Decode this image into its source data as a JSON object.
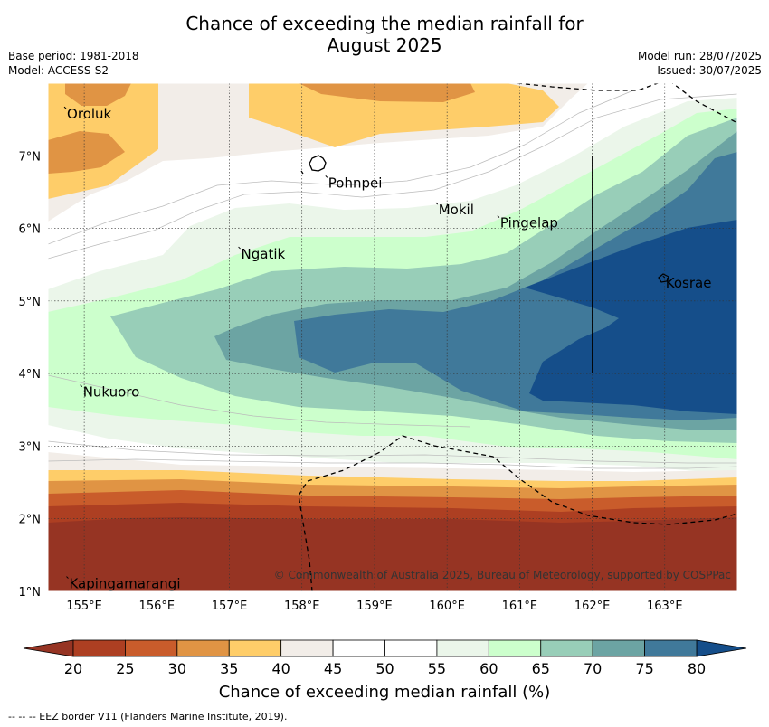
{
  "header": {
    "title_line1": "Chance of exceeding the median rainfall for",
    "title_line2": "August 2025",
    "base_period": "Base period: 1981-2018",
    "model": "Model: ACCESS-S2",
    "model_run": "Model run: 28/07/2025",
    "issued": "Issued: 30/07/2025"
  },
  "map": {
    "lon_labels": [
      "155°E",
      "156°E",
      "157°E",
      "158°E",
      "159°E",
      "160°E",
      "161°E",
      "162°E",
      "163°E"
    ],
    "lat_labels": [
      "7°N",
      "6°N",
      "5°N",
      "4°N",
      "3°N",
      "2°N",
      "1°N"
    ],
    "places": [
      {
        "name": "Oroluk",
        "lon": 154.75,
        "lat": 7.65
      },
      {
        "name": "Pohnpei",
        "lon": 158.35,
        "lat": 6.7
      },
      {
        "name": "Mokil",
        "lon": 159.87,
        "lat": 6.33
      },
      {
        "name": "Pingelap",
        "lon": 160.72,
        "lat": 6.15
      },
      {
        "name": "Ngatik",
        "lon": 157.15,
        "lat": 5.72
      },
      {
        "name": "Kosrae",
        "lon": 163.0,
        "lat": 5.32
      },
      {
        "name": "Nukuoro",
        "lon": 154.97,
        "lat": 3.82
      },
      {
        "name": "Kapingamarangi",
        "lon": 154.78,
        "lat": 1.18
      }
    ],
    "copyright": "© Commonwealth of Australia 2025, Bureau of Meteorology, supported by COSPPac",
    "border_color": "#000000"
  },
  "colorbar": {
    "ticks": [
      "20",
      "25",
      "30",
      "35",
      "40",
      "45",
      "50",
      "55",
      "60",
      "65",
      "70",
      "75",
      "80"
    ],
    "colors": [
      "#ad3f22",
      "#c95c2b",
      "#e09444",
      "#fecd69",
      "#f2ede8",
      "#ffffff",
      "#ffffff",
      "#ebf6ea",
      "#ccffcc",
      "#98ceb8",
      "#6ca4a3",
      "#40799a"
    ],
    "under_color": "#963423",
    "over_color": "#154e8a",
    "label": "Chance of exceeding median rainfall (%)"
  },
  "footnote": "--  --  -- EEZ border V11 (Flanders Marine Institute, 2019)."
}
